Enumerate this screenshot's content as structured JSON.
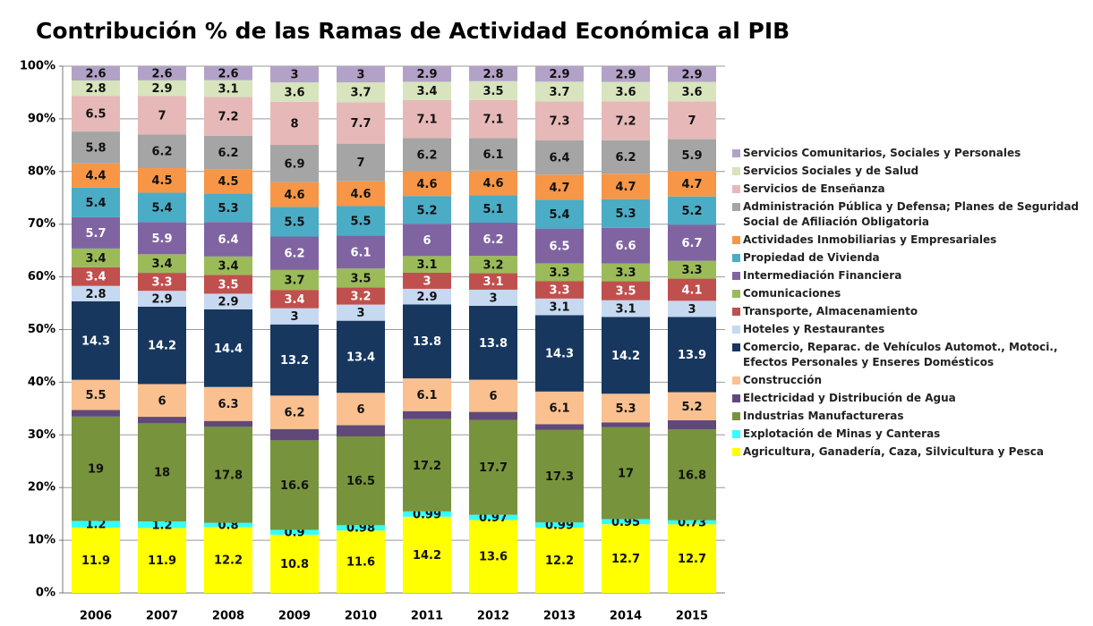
{
  "chart_data": {
    "type": "stacked_bar_100",
    "title": "Contribución % de las Ramas de Actividad Económica al PIB",
    "categories": [
      "2006",
      "2007",
      "2008",
      "2009",
      "2010",
      "2011",
      "2012",
      "2013",
      "2014",
      "2015"
    ],
    "ylim": [
      0,
      100
    ],
    "yticks": [
      {
        "value": 0,
        "label": "0%"
      },
      {
        "value": 10,
        "label": "10%"
      },
      {
        "value": 20,
        "label": "20%"
      },
      {
        "value": 30,
        "label": "30%"
      },
      {
        "value": 40,
        "label": "40%"
      },
      {
        "value": 50,
        "label": "50%"
      },
      {
        "value": 60,
        "label": "60%"
      },
      {
        "value": 70,
        "label": "70%"
      },
      {
        "value": 80,
        "label": "80%"
      },
      {
        "value": 90,
        "label": "90%"
      },
      {
        "value": 100,
        "label": "100%"
      }
    ],
    "grid": true,
    "legend": "right",
    "series": [
      {
        "name": "Agricultura, Ganadería, Caza, Silvicultura y Pesca",
        "color": "#ffff00",
        "values": [
          11.9,
          11.9,
          12.2,
          10.8,
          11.6,
          14.2,
          13.6,
          12.2,
          12.7,
          12.7
        ]
      },
      {
        "name": "Explotación de Minas y Canteras",
        "color": "#33ffff",
        "values": [
          1.2,
          1.2,
          0.8,
          0.9,
          0.98,
          0.99,
          0.97,
          0.99,
          0.95,
          0.73
        ]
      },
      {
        "name": "Industrias Manufactureras",
        "color": "#77933c",
        "values": [
          19,
          18,
          17.8,
          16.6,
          16.5,
          17.2,
          17.7,
          17.3,
          17,
          16.8
        ]
      },
      {
        "name": "Electricidad y Distribución de Agua",
        "color": "#60497a",
        "show_labels": false,
        "values": [
          1.2,
          1.2,
          1.1,
          2.1,
          2.1,
          1.5,
          1.5,
          1.1,
          0.9,
          1.7
        ]
      },
      {
        "name": "Construcción",
        "color": "#fac090",
        "values": [
          5.5,
          6,
          6.3,
          6.2,
          6,
          6.1,
          6,
          6.1,
          5.3,
          5.2
        ]
      },
      {
        "name": "Comercio, Reparac. de Vehículos Automot., Motoci., Efectos Personales y Enseres Domésticos",
        "color": "#17375e",
        "values": [
          14.3,
          14.2,
          14.4,
          13.2,
          13.4,
          13.8,
          13.8,
          14.3,
          14.2,
          13.9
        ]
      },
      {
        "name": "Hoteles y Restaurantes",
        "color": "#c6d9f1",
        "values": [
          2.8,
          2.9,
          2.9,
          3,
          3,
          2.9,
          3,
          3.1,
          3.1,
          3
        ]
      },
      {
        "name": "Transporte, Almacenamiento",
        "color": "#c0504d",
        "values": [
          3.4,
          3.3,
          3.5,
          3.4,
          3.2,
          3,
          3.1,
          3.3,
          3.5,
          4.1
        ]
      },
      {
        "name": "Comunicaciones",
        "color": "#9bbb59",
        "values": [
          3.4,
          3.4,
          3.4,
          3.7,
          3.5,
          3.1,
          3.2,
          3.3,
          3.3,
          3.3
        ]
      },
      {
        "name": "Intermediación Financiera",
        "color": "#8064a2",
        "values": [
          5.7,
          5.9,
          6.4,
          6.2,
          6.1,
          6,
          6.2,
          6.5,
          6.6,
          6.7
        ]
      },
      {
        "name": "Propiedad de Vivienda",
        "color": "#4bacc6",
        "values": [
          5.4,
          5.4,
          5.3,
          5.5,
          5.5,
          5.2,
          5.1,
          5.4,
          5.3,
          5.2
        ]
      },
      {
        "name": "Actividades Inmobiliarias y Empresariales",
        "color": "#f79646",
        "values": [
          4.4,
          4.5,
          4.5,
          4.6,
          4.6,
          4.6,
          4.6,
          4.7,
          4.7,
          4.7
        ]
      },
      {
        "name": "Administración Pública y Defensa; Planes de Seguridad Social de Afiliación Obligatoria",
        "color": "#a5a5a5",
        "values": [
          5.8,
          6.2,
          6.2,
          6.9,
          7,
          6.2,
          6.1,
          6.4,
          6.2,
          5.9
        ]
      },
      {
        "name": "Servicios de Enseñanza",
        "color": "#e6b9b8",
        "values": [
          6.5,
          7,
          7.2,
          8,
          7.7,
          7.1,
          7.1,
          7.3,
          7.2,
          7
        ]
      },
      {
        "name": "Servicios Sociales y de Salud",
        "color": "#d7e4bd",
        "values": [
          2.8,
          2.9,
          3.1,
          3.6,
          3.7,
          3.4,
          3.5,
          3.7,
          3.6,
          3.6
        ]
      },
      {
        "name": "Servicios Comunitarios, Sociales y Personales",
        "color": "#b3a2c7",
        "values": [
          2.6,
          2.6,
          2.6,
          3,
          3,
          2.9,
          2.8,
          2.9,
          2.9,
          2.9
        ]
      }
    ]
  }
}
